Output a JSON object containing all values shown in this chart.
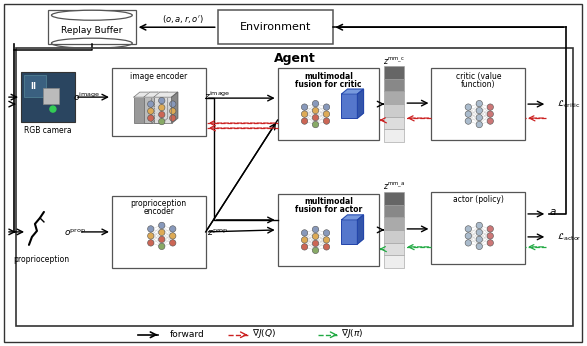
{
  "fig_width": 5.87,
  "fig_height": 3.46,
  "bg_color": "#ffffff",
  "title_agent": "Agent",
  "replay_buffer_label": "Replay Buffer",
  "environment_label": "Environment",
  "rgb_camera_label": "RGB camera",
  "proprioception_label": "proprioception",
  "legend_forward": "forward"
}
